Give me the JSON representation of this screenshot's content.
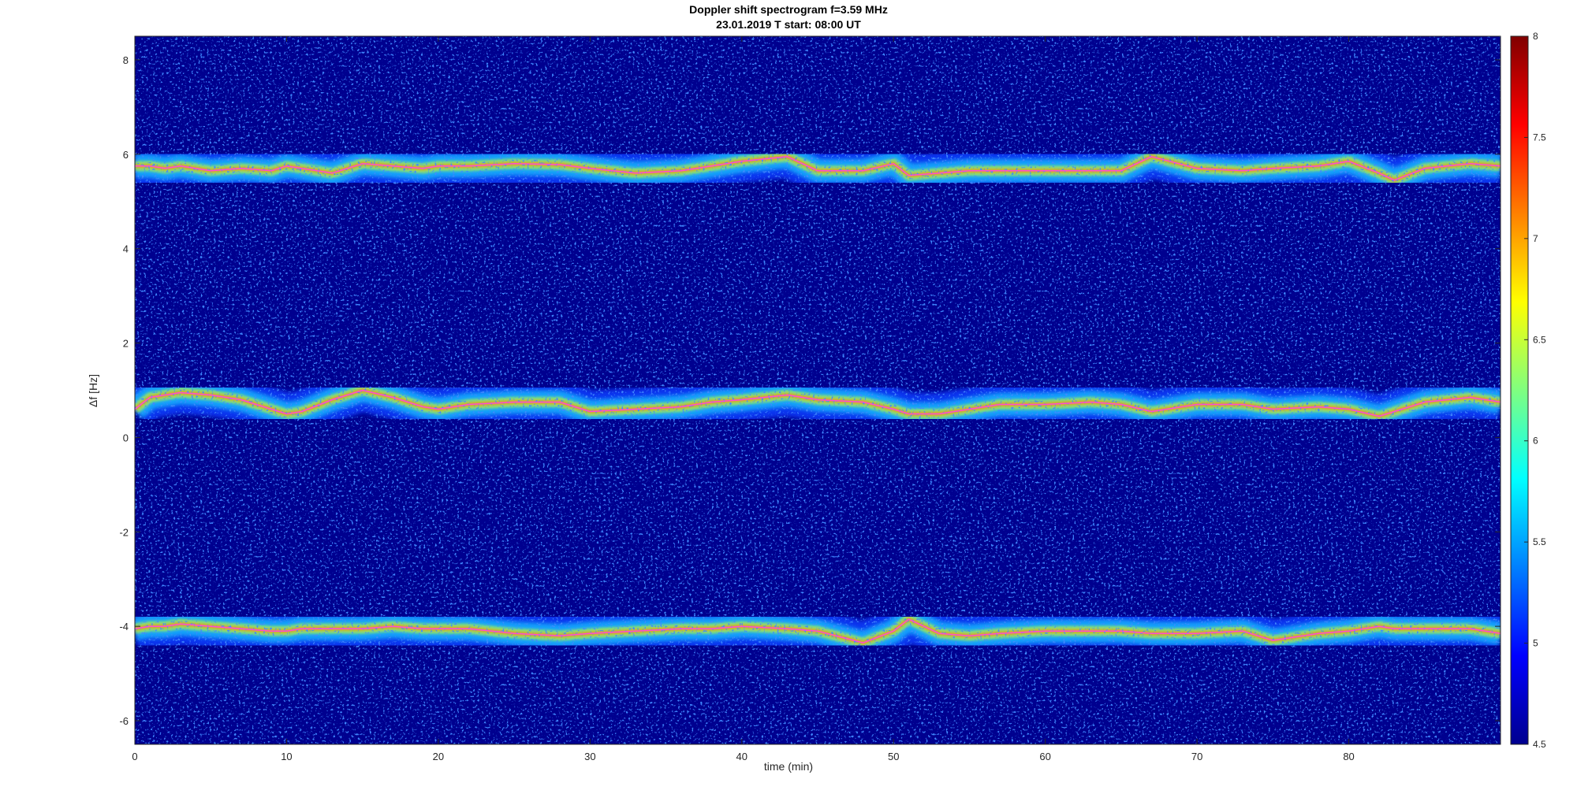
{
  "chart_data": {
    "type": "heatmap",
    "title": "Doppler shift spectrogram f=3.59 MHz",
    "subtitle": "23.01.2019   T start: 08:00 UT",
    "xlabel": "time (min)",
    "ylabel": "Δf [Hz]",
    "xlim": [
      0,
      90
    ],
    "ylim": [
      -6.5,
      8.5
    ],
    "xticks": [
      0,
      10,
      20,
      30,
      40,
      50,
      60,
      70,
      80
    ],
    "yticks": [
      -6,
      -4,
      -2,
      0,
      2,
      4,
      6,
      8
    ],
    "colormap": "jet",
    "colorbar": {
      "range": [
        4.5,
        8
      ],
      "ticks": [
        "4.5",
        "5",
        "5.5",
        "6",
        "6.5",
        "7",
        "7.5",
        "8"
      ]
    },
    "grid": false,
    "background_color": "#00008f",
    "trace_color": "#ff4dd2",
    "series": [
      {
        "x": [
          0,
          1,
          2,
          3,
          5,
          7,
          9,
          10,
          11,
          13,
          15,
          17,
          19,
          20,
          22,
          25,
          28,
          30,
          33,
          36,
          38,
          40,
          43,
          45,
          48,
          50,
          51,
          53,
          55,
          57,
          60,
          63,
          65,
          67,
          70,
          73,
          75,
          78,
          80,
          82,
          83,
          85,
          88,
          90
        ],
        "y": [
          5.75,
          5.75,
          5.7,
          5.75,
          5.65,
          5.7,
          5.65,
          5.75,
          5.7,
          5.6,
          5.8,
          5.75,
          5.7,
          5.75,
          5.75,
          5.8,
          5.78,
          5.7,
          5.6,
          5.65,
          5.75,
          5.85,
          5.95,
          5.65,
          5.65,
          5.8,
          5.55,
          5.6,
          5.65,
          5.65,
          5.65,
          5.65,
          5.65,
          5.95,
          5.7,
          5.65,
          5.7,
          5.75,
          5.85,
          5.6,
          5.45,
          5.7,
          5.8,
          5.75
        ]
      },
      {
        "x": [
          0,
          1,
          2,
          3,
          5,
          7,
          9,
          10,
          11,
          13,
          15,
          17,
          19,
          20,
          22,
          25,
          28,
          30,
          33,
          36,
          38,
          40,
          43,
          45,
          48,
          50,
          51,
          53,
          55,
          57,
          60,
          63,
          65,
          67,
          70,
          73,
          75,
          78,
          80,
          82,
          83,
          85,
          88,
          90
        ],
        "y": [
          0.6,
          0.85,
          0.9,
          0.95,
          0.9,
          0.8,
          0.6,
          0.5,
          0.55,
          0.8,
          1.0,
          0.85,
          0.65,
          0.6,
          0.7,
          0.75,
          0.75,
          0.55,
          0.6,
          0.65,
          0.75,
          0.8,
          0.9,
          0.8,
          0.75,
          0.6,
          0.5,
          0.5,
          0.6,
          0.7,
          0.7,
          0.75,
          0.7,
          0.55,
          0.7,
          0.7,
          0.6,
          0.65,
          0.6,
          0.45,
          0.55,
          0.75,
          0.85,
          0.75
        ]
      },
      {
        "x": [
          0,
          1,
          2,
          3,
          5,
          7,
          9,
          10,
          11,
          13,
          15,
          17,
          19,
          20,
          22,
          25,
          28,
          30,
          33,
          36,
          38,
          40,
          43,
          45,
          48,
          50,
          51,
          53,
          55,
          57,
          60,
          63,
          65,
          67,
          70,
          73,
          75,
          78,
          80,
          82,
          83,
          85,
          88,
          90
        ],
        "y": [
          -4.05,
          -4.0,
          -4.0,
          -3.95,
          -4.0,
          -4.05,
          -4.1,
          -4.1,
          -4.05,
          -4.05,
          -4.05,
          -4.0,
          -4.05,
          -4.05,
          -4.05,
          -4.15,
          -4.2,
          -4.15,
          -4.1,
          -4.05,
          -4.05,
          -4.0,
          -4.05,
          -4.1,
          -4.35,
          -4.1,
          -3.85,
          -4.15,
          -4.2,
          -4.15,
          -4.1,
          -4.1,
          -4.1,
          -4.15,
          -4.15,
          -4.1,
          -4.3,
          -4.15,
          -4.1,
          -4.0,
          -4.05,
          -4.05,
          -4.05,
          -4.15
        ]
      }
    ]
  }
}
